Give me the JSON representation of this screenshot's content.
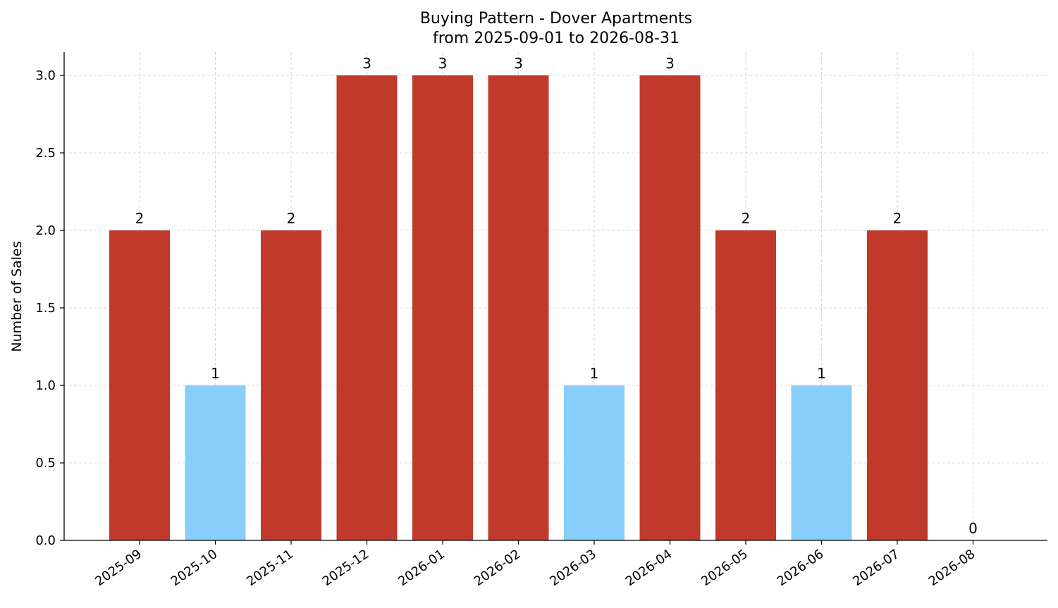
{
  "chart_data": {
    "type": "bar",
    "title": "Buying Pattern - Dover Apartments",
    "subtitle": "from 2025-09-01 to 2026-08-31",
    "xlabel": "",
    "ylabel": "Number of Sales",
    "categories": [
      "2025-09",
      "2025-10",
      "2025-11",
      "2025-12",
      "2026-01",
      "2026-02",
      "2026-03",
      "2026-04",
      "2026-05",
      "2026-06",
      "2026-07",
      "2026-08"
    ],
    "values": [
      2,
      1,
      2,
      3,
      3,
      3,
      1,
      3,
      2,
      1,
      2,
      0
    ],
    "data_labels": [
      "2",
      "1",
      "2",
      "3",
      "3",
      "3",
      "1",
      "3",
      "2",
      "1",
      "2",
      "0"
    ],
    "ylim": [
      0,
      3.15
    ],
    "yticks": [
      0.0,
      0.5,
      1.0,
      1.5,
      2.0,
      2.5,
      3.0
    ],
    "ytick_labels": [
      "0.0",
      "0.5",
      "1.0",
      "1.5",
      "2.0",
      "2.5",
      "3.0"
    ],
    "grid": true,
    "colors": {
      "high": "#c0392b",
      "low": "#87cefa"
    },
    "high_threshold": 2
  }
}
